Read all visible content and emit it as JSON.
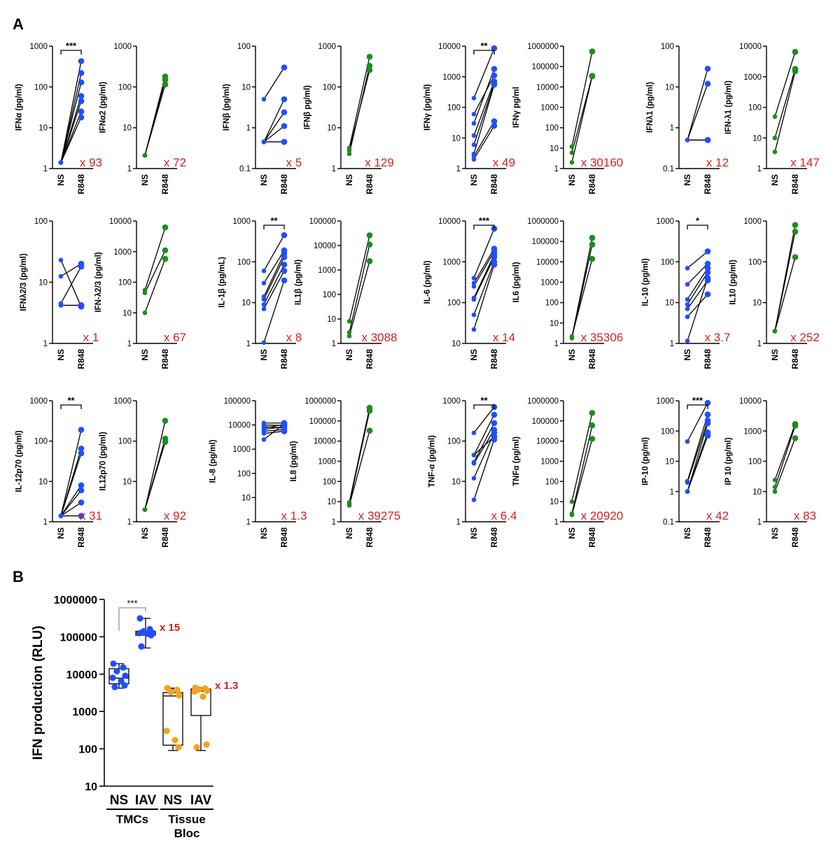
{
  "panels": {
    "a": "A",
    "b": "B"
  },
  "colors": {
    "human": "#1f4fff",
    "ferret": "#1e8c1e",
    "tissue": "#f7a21b",
    "fold": "#d61f1f"
  },
  "chart_data": [
    {
      "type": "scatter",
      "ylabel": "IFNα (pg/ml)",
      "ylog": true,
      "yticks": [
        "1",
        "10",
        "100",
        "1000"
      ],
      "ylim": [
        1,
        1000
      ],
      "categories": [
        "NS",
        "R848"
      ],
      "color": "human",
      "pairs": [
        [
          1.4,
          430
        ],
        [
          1.4,
          220
        ],
        [
          1.4,
          130
        ],
        [
          1.4,
          60
        ],
        [
          1.4,
          45
        ],
        [
          1.4,
          25
        ],
        [
          1.4,
          18
        ]
      ],
      "fold": "x 93",
      "sig": "***"
    },
    {
      "type": "scatter",
      "ylabel": "IFNα2 (pg/ml)",
      "ylog": true,
      "yticks": [
        "1",
        "10",
        "100",
        "1000"
      ],
      "ylim": [
        1,
        1000
      ],
      "categories": [
        "NS",
        "R848"
      ],
      "color": "ferret",
      "pairs": [
        [
          2.1,
          180
        ],
        [
          2.1,
          150
        ],
        [
          2.1,
          115
        ]
      ],
      "fold": "x 72",
      "sig": ""
    },
    {
      "type": "scatter",
      "ylabel": "IFNβ (pg/ml)",
      "ylog": true,
      "yticks": [
        "0.1",
        "1",
        "10",
        "100"
      ],
      "ylim": [
        0.1,
        100
      ],
      "categories": [
        "NS",
        "R848"
      ],
      "color": "human",
      "pairs": [
        [
          5,
          30
        ],
        [
          0.45,
          5
        ],
        [
          0.45,
          2.4
        ],
        [
          0.45,
          1.1
        ],
        [
          0.45,
          0.45
        ],
        [
          0.45,
          0.45
        ]
      ],
      "fold": "x 5",
      "sig": ""
    },
    {
      "type": "scatter",
      "ylabel": "IFNβ pg/ml)",
      "ylog": true,
      "yticks": [
        "1",
        "10",
        "100",
        "1000"
      ],
      "ylim": [
        1,
        1000
      ],
      "categories": [
        "NS",
        "R848"
      ],
      "color": "ferret",
      "pairs": [
        [
          3.2,
          550
        ],
        [
          2.3,
          330
        ],
        [
          2.8,
          260
        ]
      ],
      "fold": "x 129",
      "sig": ""
    },
    {
      "type": "scatter",
      "ylabel": "IFNγ (pg/ml)",
      "ylog": true,
      "yticks": [
        "1",
        "10",
        "100",
        "1000",
        "10000"
      ],
      "ylim": [
        1,
        10000
      ],
      "categories": [
        "NS",
        "R848"
      ],
      "color": "human",
      "pairs": [
        [
          200,
          8500
        ],
        [
          30,
          1800
        ],
        [
          60,
          1100
        ],
        [
          12,
          700
        ],
        [
          6,
          600
        ],
        [
          3,
          550
        ],
        [
          2.5,
          35
        ],
        [
          2,
          25
        ]
      ],
      "fold": "x 49",
      "sig": "**"
    },
    {
      "type": "scatter",
      "ylabel": "IFNγ pg/ml",
      "ylog": true,
      "yticks": [
        "1",
        "10",
        "100",
        "1000",
        "10000",
        "100000",
        "1000000"
      ],
      "ylim": [
        1,
        1000000
      ],
      "categories": [
        "NS",
        "R848"
      ],
      "color": "ferret",
      "pairs": [
        [
          12,
          550000
        ],
        [
          6,
          35000
        ],
        [
          2,
          33000
        ]
      ],
      "fold": "x 30160",
      "sig": ""
    },
    {
      "type": "scatter",
      "ylabel": "IFNλ1 (pg/ml)",
      "ylog": true,
      "yticks": [
        "0.1",
        "1",
        "10",
        "100"
      ],
      "ylim": [
        0.1,
        100
      ],
      "categories": [
        "NS",
        "R848"
      ],
      "color": "human",
      "pairs": [
        [
          0.5,
          28
        ],
        [
          0.5,
          12
        ],
        [
          0.5,
          0.5
        ],
        [
          0.5,
          0.5
        ]
      ],
      "fold": "x 12",
      "sig": ""
    },
    {
      "type": "scatter",
      "ylabel": "IFN-λ1 (pg/ml)",
      "ylog": true,
      "yticks": [
        "1",
        "10",
        "100",
        "1000",
        "10000"
      ],
      "ylim": [
        1,
        10000
      ],
      "categories": [
        "NS",
        "R848"
      ],
      "color": "ferret",
      "pairs": [
        [
          50,
          6500
        ],
        [
          10,
          1800
        ],
        [
          3.5,
          1500
        ]
      ],
      "fold": "x 147",
      "sig": ""
    },
    {
      "type": "scatter",
      "ylabel": "IFNλ2/3 (pg/ml)",
      "ylog": true,
      "yticks": [
        "1",
        "10",
        "100"
      ],
      "ylim": [
        1,
        100
      ],
      "categories": [
        "NS",
        "R848"
      ],
      "color": "human",
      "pairs": [
        [
          23,
          4
        ],
        [
          12.5,
          20
        ],
        [
          4.5,
          18
        ],
        [
          4.2,
          4.2
        ],
        [
          4.2,
          4.2
        ]
      ],
      "fold": "x 1",
      "sig": ""
    },
    {
      "type": "scatter",
      "ylabel": "IFN-λ2/3 (pg/ml)",
      "ylog": true,
      "yticks": [
        "1",
        "10",
        "100",
        "1000",
        "10000"
      ],
      "ylim": [
        1,
        10000
      ],
      "categories": [
        "NS",
        "R848"
      ],
      "color": "ferret",
      "pairs": [
        [
          55,
          6200
        ],
        [
          45,
          1100
        ],
        [
          10,
          580
        ]
      ],
      "fold": "x 67",
      "sig": ""
    },
    {
      "type": "scatter",
      "ylabel": "IL-1β (pg/mL)",
      "ylog": true,
      "yticks": [
        "1",
        "10",
        "100",
        "1000"
      ],
      "ylim": [
        1,
        1000
      ],
      "categories": [
        "NS",
        "R848"
      ],
      "color": "human",
      "pairs": [
        [
          60,
          450
        ],
        [
          30,
          190
        ],
        [
          14,
          160
        ],
        [
          12,
          130
        ],
        [
          9,
          85
        ],
        [
          7,
          60
        ],
        [
          1.05,
          35
        ]
      ],
      "fold": "x 8",
      "sig": "**"
    },
    {
      "type": "scatter",
      "ylabel": "IL1β (pg/ml)",
      "ylog": true,
      "yticks": [
        "1",
        "10",
        "100",
        "1000",
        "10000",
        "100000"
      ],
      "ylim": [
        1,
        100000
      ],
      "categories": [
        "NS",
        "R848"
      ],
      "color": "ferret",
      "pairs": [
        [
          8,
          26000
        ],
        [
          2.8,
          11000
        ],
        [
          2,
          2300
        ]
      ],
      "fold": "x 3088",
      "sig": ""
    },
    {
      "type": "scatter",
      "ylabel": "IL-6 (pg/ml)",
      "ylog": true,
      "yticks": [
        "10",
        "100",
        "1000",
        "10000"
      ],
      "ylim": [
        10,
        10000
      ],
      "categories": [
        "NS",
        "R848"
      ],
      "color": "human",
      "pairs": [
        [
          400,
          6500
        ],
        [
          300,
          2100
        ],
        [
          250,
          1800
        ],
        [
          130,
          1500
        ],
        [
          120,
          1300
        ],
        [
          50,
          1000
        ],
        [
          22,
          850
        ]
      ],
      "fold": "x 14",
      "sig": "***"
    },
    {
      "type": "scatter",
      "ylabel": "IL6 (pg/ml)",
      "ylog": true,
      "yticks": [
        "1",
        "10",
        "100",
        "1000",
        "10000",
        "100000",
        "1000000"
      ],
      "ylim": [
        1,
        1000000
      ],
      "categories": [
        "NS",
        "R848"
      ],
      "color": "ferret",
      "pairs": [
        [
          2,
          150000
        ],
        [
          1.8,
          70000
        ],
        [
          2.2,
          14000
        ]
      ],
      "fold": "x 35306",
      "sig": ""
    },
    {
      "type": "scatter",
      "ylabel": "IL-10 (pg/ml)",
      "ylog": true,
      "yticks": [
        "1",
        "10",
        "100",
        "1000"
      ],
      "ylim": [
        1,
        1000
      ],
      "categories": [
        "NS",
        "R848"
      ],
      "color": "human",
      "pairs": [
        [
          70,
          180
        ],
        [
          28,
          90
        ],
        [
          12,
          70
        ],
        [
          9,
          55
        ],
        [
          7,
          35
        ],
        [
          4.5,
          16
        ],
        [
          1.15,
          40
        ]
      ],
      "fold": "x 3.7",
      "sig": "*"
    },
    {
      "type": "scatter",
      "ylabel": "IL10 (pg/ml)",
      "ylog": true,
      "yticks": [
        "1",
        "10",
        "100",
        "1000"
      ],
      "ylim": [
        1,
        1000
      ],
      "categories": [
        "NS",
        "R848"
      ],
      "color": "ferret",
      "pairs": [
        [
          2,
          800
        ],
        [
          2,
          550
        ],
        [
          2,
          130
        ]
      ],
      "fold": "x 252",
      "sig": ""
    },
    {
      "type": "scatter",
      "ylabel": "IL-12p70 (pg/ml)",
      "ylog": true,
      "yticks": [
        "1",
        "10",
        "100",
        "1000"
      ],
      "ylim": [
        1,
        1000
      ],
      "categories": [
        "NS",
        "R848"
      ],
      "color": "human",
      "pairs": [
        [
          1.4,
          190
        ],
        [
          1.4,
          65
        ],
        [
          1.4,
          50
        ],
        [
          1.4,
          8
        ],
        [
          1.4,
          6
        ],
        [
          1.4,
          3
        ],
        [
          1.4,
          1.4
        ]
      ],
      "fold": "x 31",
      "sig": "**"
    },
    {
      "type": "scatter",
      "ylabel": "IL12p70 (pg/ml)",
      "ylog": true,
      "yticks": [
        "1",
        "10",
        "100",
        "1000"
      ],
      "ylim": [
        1,
        1000
      ],
      "categories": [
        "NS",
        "R848"
      ],
      "color": "ferret",
      "pairs": [
        [
          2,
          320
        ],
        [
          2,
          115
        ],
        [
          2,
          95
        ]
      ],
      "fold": "x 92",
      "sig": ""
    },
    {
      "type": "scatter",
      "ylabel": "IL-8 (pg/ml)",
      "ylog": true,
      "yticks": [
        "1",
        "10",
        "100",
        "1000",
        "10000",
        "100000"
      ],
      "ylim": [
        1,
        100000
      ],
      "categories": [
        "NS",
        "R848"
      ],
      "color": "human",
      "pairs": [
        [
          12000,
          12000
        ],
        [
          10000,
          9500
        ],
        [
          8500,
          7500
        ],
        [
          7500,
          10500
        ],
        [
          6500,
          8500
        ],
        [
          5500,
          6500
        ],
        [
          4500,
          5500
        ],
        [
          2500,
          11000
        ]
      ],
      "fold": "x 1.3",
      "sig": ""
    },
    {
      "type": "scatter",
      "ylabel": "IL8 (pg/ml)",
      "ylog": true,
      "yticks": [
        "1",
        "10",
        "100",
        "1000",
        "10000",
        "100000",
        "1000000"
      ],
      "ylim": [
        1,
        1000000
      ],
      "categories": [
        "NS",
        "R848"
      ],
      "color": "ferret",
      "pairs": [
        [
          9,
          450000
        ],
        [
          7.5,
          320000
        ],
        [
          6.5,
          33000
        ]
      ],
      "fold": "x 39275",
      "sig": ""
    },
    {
      "type": "scatter",
      "ylabel": "TNF-α (pg/ml)",
      "ylog": true,
      "yticks": [
        "1",
        "10",
        "100",
        "1000"
      ],
      "ylim": [
        1,
        1000
      ],
      "categories": [
        "NS",
        "R848"
      ],
      "color": "human",
      "pairs": [
        [
          160,
          700
        ],
        [
          45,
          450
        ],
        [
          45,
          130
        ],
        [
          30,
          280
        ],
        [
          28,
          190
        ],
        [
          12,
          160
        ],
        [
          3.5,
          110
        ]
      ],
      "fold": "x 6.4",
      "sig": "**"
    },
    {
      "type": "scatter",
      "ylabel": "TNFα (pg/ml)",
      "ylog": true,
      "yticks": [
        "1",
        "10",
        "100",
        "1000",
        "10000",
        "100000",
        "1000000"
      ],
      "ylim": [
        1,
        1000000
      ],
      "categories": [
        "NS",
        "R848"
      ],
      "color": "ferret",
      "pairs": [
        [
          10,
          250000
        ],
        [
          2.5,
          60000
        ],
        [
          2.2,
          13000
        ]
      ],
      "fold": "x 20920",
      "sig": ""
    },
    {
      "type": "scatter",
      "ylabel": "IP-10 (pg/ml)",
      "ylog": true,
      "yticks": [
        "0.1",
        "1",
        "10",
        "100",
        "1000"
      ],
      "ylim": [
        0.1,
        1000
      ],
      "categories": [
        "NS",
        "R848"
      ],
      "color": "human",
      "pairs": [
        [
          45,
          850
        ],
        [
          2.2,
          350
        ],
        [
          2,
          220
        ],
        [
          1,
          180
        ],
        [
          1,
          90
        ],
        [
          1,
          70
        ]
      ],
      "fold": "x 42",
      "sig": "***"
    },
    {
      "type": "scatter",
      "ylabel": "IP 10 (pg/ml)",
      "ylog": true,
      "yticks": [
        "1",
        "10",
        "100",
        "1000",
        "10000"
      ],
      "ylim": [
        1,
        10000
      ],
      "categories": [
        "NS",
        "R848"
      ],
      "color": "ferret",
      "pairs": [
        [
          24,
          1700
        ],
        [
          14,
          1500
        ],
        [
          10,
          580
        ]
      ],
      "fold": "x 83",
      "sig": ""
    },
    {
      "type": "box",
      "ylabel": "IFN production (RLU)",
      "ylog": true,
      "yticks": [
        "10",
        "100",
        "1000",
        "10000",
        "100000",
        "1000000"
      ],
      "ylim": [
        10,
        1000000
      ],
      "categories": [
        "NS",
        "IAV",
        "NS",
        "IAV"
      ],
      "groups": [
        {
          "label": "TMCs",
          "span": [
            0,
            1
          ]
        },
        {
          "label": "Tissue Bloc",
          "span": [
            2,
            3
          ]
        }
      ],
      "boxes": [
        {
          "min": 4200,
          "q1": 5500,
          "median": 7800,
          "q3": 14000,
          "max": 19000,
          "color": "human",
          "points": [
            19000,
            15000,
            12000,
            9000,
            8000,
            6500,
            5000,
            4500
          ]
        },
        {
          "min": 50000,
          "q1": 110000,
          "median": 125000,
          "q3": 140000,
          "max": 310000,
          "color": "human",
          "points": [
            310000,
            160000,
            140000,
            130000,
            125000,
            120000,
            110000,
            55000
          ]
        },
        {
          "min": 90,
          "q1": 125,
          "median": 2600,
          "q3": 3200,
          "max": 4200,
          "color": "tissue",
          "points": [
            4200,
            3800,
            3300,
            2700,
            300,
            170,
            110
          ]
        },
        {
          "min": 90,
          "q1": 780,
          "median": 3500,
          "q3": 4000,
          "max": 4300,
          "color": "tissue",
          "points": [
            4300,
            4100,
            3900,
            3600,
            3400,
            2500,
            130,
            110
          ]
        }
      ],
      "annotations": [
        {
          "text": "x 15",
          "box": 1
        },
        {
          "text": "x 1.3",
          "box": 3
        }
      ],
      "sig": {
        "text": "***",
        "between": [
          0,
          1
        ]
      }
    }
  ]
}
